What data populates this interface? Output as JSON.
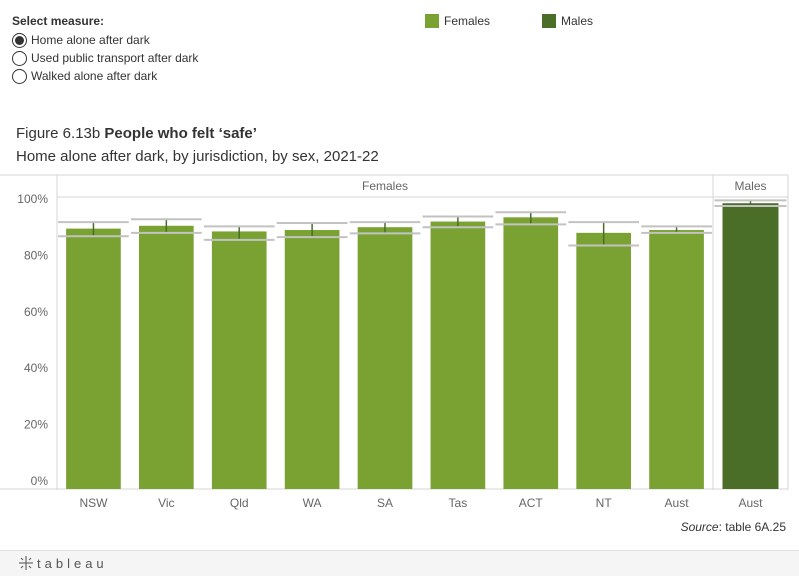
{
  "controls": {
    "title": "Select measure:",
    "options": [
      {
        "label": "Home alone after dark",
        "selected": true
      },
      {
        "label": "Used public transport after dark",
        "selected": false
      },
      {
        "label": "Walked alone after dark",
        "selected": false
      }
    ]
  },
  "legend": [
    {
      "label": "Females",
      "color": "#7aa232"
    },
    {
      "label": "Males",
      "color": "#4a6d28"
    }
  ],
  "figure": {
    "number": "Figure 6.13b",
    "title": "People who felt ‘safe’",
    "subtitle": "Home alone after dark, by jurisdiction, by sex, 2021-22"
  },
  "source": {
    "label": "Source",
    "text": ": table 6A.25"
  },
  "footer": {
    "brand": "tableau",
    "icon": "tableau-plus-icon"
  },
  "chart_data": {
    "type": "bar",
    "ylim": [
      0,
      100
    ],
    "yticks": [
      0,
      20,
      40,
      60,
      80,
      100
    ],
    "ytick_labels": [
      "0%",
      "20%",
      "40%",
      "60%",
      "80%",
      "100%"
    ],
    "grid": false,
    "error_bars": true,
    "panels": [
      {
        "name": "Females",
        "color": "#7aa232",
        "categories": [
          "NSW",
          "Vic",
          "Qld",
          "WA",
          "SA",
          "Tas",
          "ACT",
          "NT",
          "Aust"
        ],
        "values": [
          89.5,
          90.5,
          88.5,
          89.0,
          90.0,
          92.0,
          93.5,
          88.0,
          89.0
        ],
        "ci_low": [
          86.8,
          88.0,
          85.5,
          86.5,
          87.8,
          90.0,
          91.0,
          83.5,
          88.0
        ],
        "ci_high": [
          91.8,
          92.8,
          90.3,
          91.5,
          91.8,
          93.8,
          95.3,
          91.8,
          90.3
        ]
      },
      {
        "name": "Males",
        "color": "#4a6d28",
        "categories": [
          "Aust"
        ],
        "values": [
          98.5
        ],
        "ci_low": [
          97.5
        ],
        "ci_high": [
          99.5
        ]
      }
    ]
  }
}
